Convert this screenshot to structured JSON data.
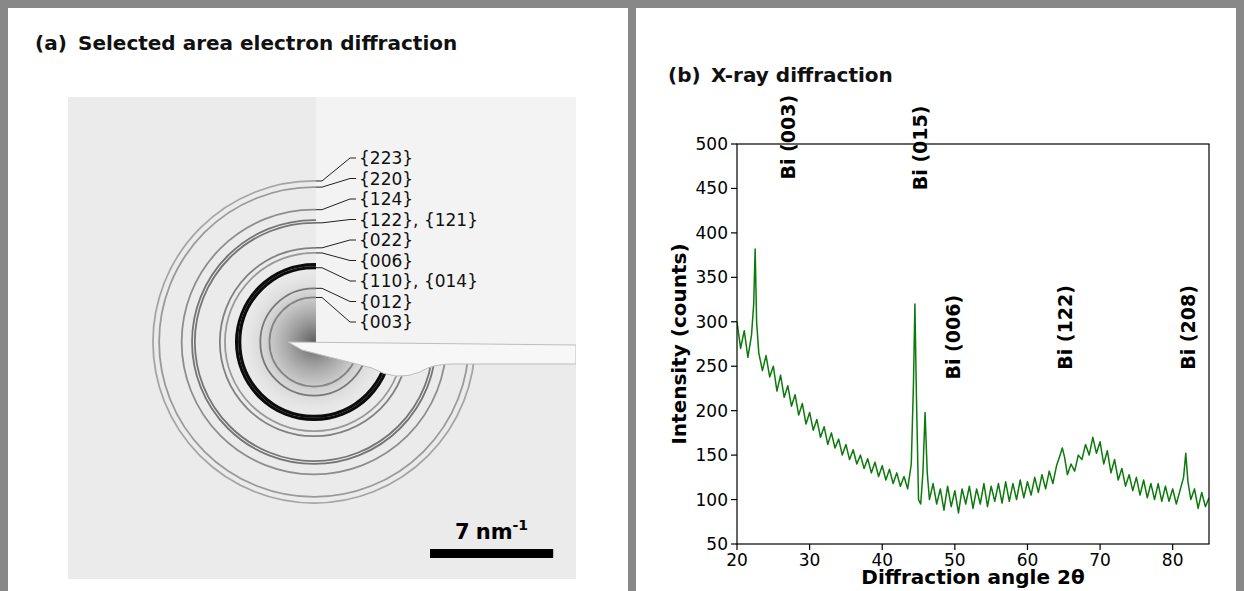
{
  "panel_a": {
    "panel_label": "(a)",
    "title": "Selected area electron diffraction",
    "rings": [
      {
        "label": "{003}",
        "q": [
          2.53
        ],
        "intensity": 0.35
      },
      {
        "label": "{012}",
        "q": [
          3.05
        ],
        "intensity": 0.45
      },
      {
        "label": "{110}, {014}",
        "q": [
          4.22,
          4.4
        ],
        "intensity": 0.95
      },
      {
        "label": "{006}",
        "q": [
          5.06
        ],
        "intensity": 0.35
      },
      {
        "label": "{022}",
        "q": [
          5.35
        ],
        "intensity": 0.45
      },
      {
        "label": "{122}, {121}",
        "q": [
          6.93,
          6.77
        ],
        "intensity": 0.5
      },
      {
        "label": "{124}",
        "q": [
          7.52
        ],
        "intensity": 0.4
      },
      {
        "label": "{220}",
        "q": [
          8.8
        ],
        "intensity": 0.35
      },
      {
        "label": "{223}",
        "q": [
          9.15
        ],
        "intensity": 0.3
      }
    ],
    "scale_bar": {
      "value": 7,
      "unit": "nm",
      "exponent": "-1"
    }
  },
  "chart_data": {
    "type": "line",
    "panel_label": "(b)",
    "title": "X-ray diffraction",
    "x_label": "Diffraction angle 2θ",
    "y_label": "Intensity (counts)",
    "xlim": [
      20,
      85
    ],
    "xticks": [
      20,
      30,
      40,
      50,
      60,
      70,
      80
    ],
    "ylim": [
      50,
      500
    ],
    "yticks": [
      50,
      100,
      150,
      200,
      250,
      300,
      350,
      400,
      450,
      500
    ],
    "grid": false,
    "x": [
      20,
      20.5,
      21,
      21.5,
      22,
      22.3,
      22.5,
      22.7,
      23,
      23.5,
      24,
      24.5,
      25,
      25.5,
      26,
      26.5,
      27,
      27.5,
      28,
      28.5,
      29,
      29.5,
      30,
      30.5,
      31,
      31.5,
      32,
      32.5,
      33,
      33.5,
      34,
      34.5,
      35,
      35.5,
      36,
      36.5,
      37,
      37.5,
      38,
      38.5,
      39,
      39.5,
      40,
      40.5,
      41,
      41.5,
      42,
      42.5,
      43,
      43.5,
      44,
      44.3,
      44.5,
      44.7,
      45,
      45.3,
      45.6,
      45.9,
      46.2,
      46.5,
      47,
      47.5,
      48,
      48.5,
      49,
      49.5,
      50,
      50.5,
      51,
      51.5,
      52,
      52.5,
      53,
      53.5,
      54,
      54.5,
      55,
      55.5,
      56,
      56.5,
      57,
      57.5,
      58,
      58.5,
      59,
      59.5,
      60,
      60.5,
      61,
      61.5,
      62,
      62.5,
      63,
      63.5,
      64,
      64.5,
      64.8,
      65.1,
      65.5,
      66,
      66.5,
      67,
      67.5,
      68,
      68.5,
      69,
      69.5,
      70,
      70.5,
      71,
      71.5,
      72,
      72.5,
      73,
      73.5,
      74,
      74.5,
      75,
      75.5,
      76,
      76.5,
      77,
      77.5,
      78,
      78.5,
      79,
      79.5,
      80,
      80.5,
      81,
      81.5,
      81.8,
      82.1,
      82.5,
      83,
      83.5,
      84,
      84.5,
      85
    ],
    "series": [
      {
        "name": "Bi",
        "color": "#0b7a0b",
        "values": [
          300,
          270,
          290,
          260,
          285,
          320,
          382,
          300,
          265,
          245,
          262,
          238,
          250,
          222,
          240,
          215,
          228,
          205,
          218,
          195,
          208,
          185,
          198,
          178,
          190,
          170,
          182,
          162,
          175,
          158,
          168,
          150,
          162,
          145,
          156,
          140,
          150,
          135,
          146,
          130,
          142,
          126,
          138,
          122,
          134,
          118,
          130,
          115,
          126,
          112,
          140,
          230,
          320,
          220,
          100,
          95,
          130,
          198,
          130,
          100,
          118,
          95,
          112,
          88,
          115,
          92,
          110,
          85,
          112,
          95,
          115,
          90,
          112,
          95,
          118,
          92,
          115,
          98,
          118,
          96,
          120,
          98,
          118,
          100,
          122,
          102,
          120,
          105,
          125,
          108,
          128,
          112,
          132,
          118,
          138,
          150,
          158,
          148,
          128,
          140,
          132,
          150,
          145,
          162,
          150,
          170,
          152,
          165,
          140,
          155,
          130,
          145,
          122,
          135,
          115,
          128,
          110,
          125,
          105,
          122,
          102,
          118,
          100,
          118,
          98,
          115,
          98,
          112,
          95,
          110,
          125,
          152,
          120,
          100,
          112,
          90,
          108,
          92,
          102
        ]
      }
    ],
    "annotations": [
      {
        "text": "Bi (003)",
        "x": 27,
        "y": 460
      },
      {
        "text": "Bi (015)",
        "x": 45.2,
        "y": 448
      },
      {
        "text": "Bi (006)",
        "x": 49.75,
        "y": 235
      },
      {
        "text": "Bi (122)",
        "x": 65.2,
        "y": 246
      },
      {
        "text": "Bi (208)",
        "x": 82.1,
        "y": 246
      }
    ]
  }
}
